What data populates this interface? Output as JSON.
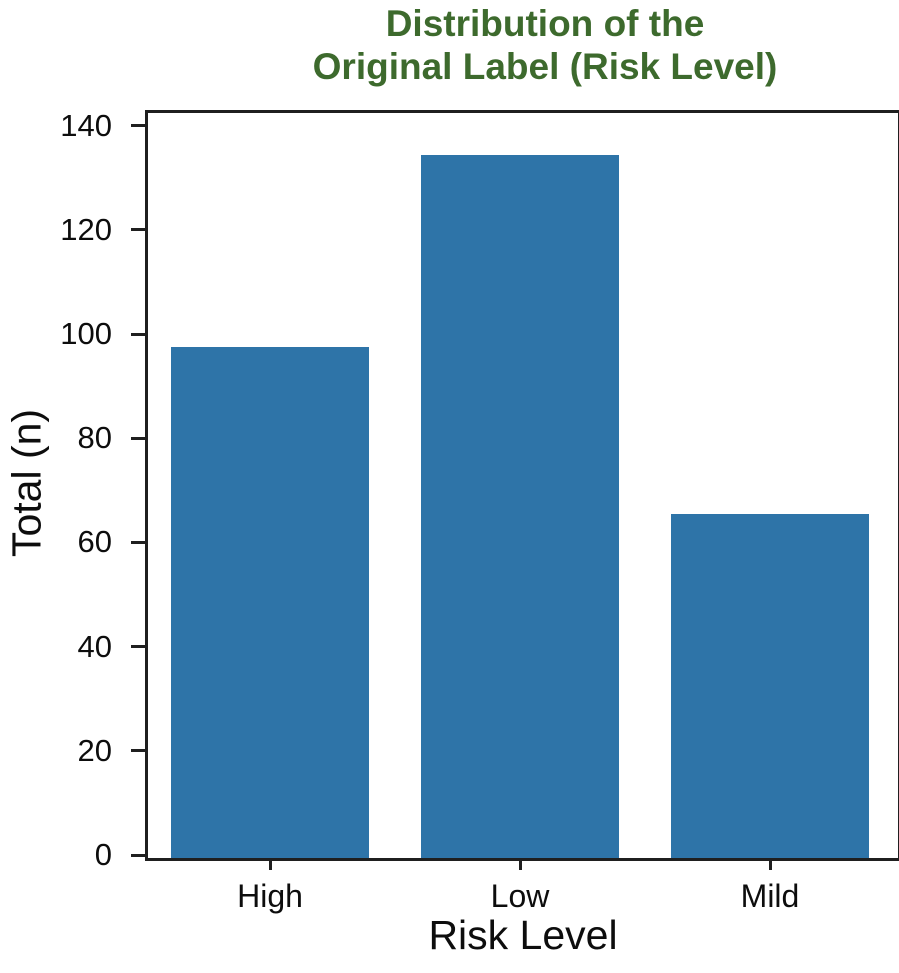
{
  "chart": {
    "title_line1": "Distribution of the",
    "title_line2": "Original Label (Risk Level)",
    "xlabel": "Risk Level",
    "ylabel": "Total (n)"
  },
  "chart_data": {
    "type": "bar",
    "categories": [
      "High",
      "Low",
      "Mild"
    ],
    "values": [
      98,
      135,
      66
    ],
    "title": "Distribution of the Original Label (Risk Level)",
    "xlabel": "Risk Level",
    "ylabel": "Total (n)",
    "ylim": [
      0,
      143
    ],
    "yticks": [
      0,
      20,
      40,
      60,
      80,
      100,
      120,
      140
    ],
    "grid": false,
    "legend": "none",
    "bar_color": "#2e74a8",
    "title_color": "#3d6a2d",
    "axis_color": "#1f1f1f"
  }
}
